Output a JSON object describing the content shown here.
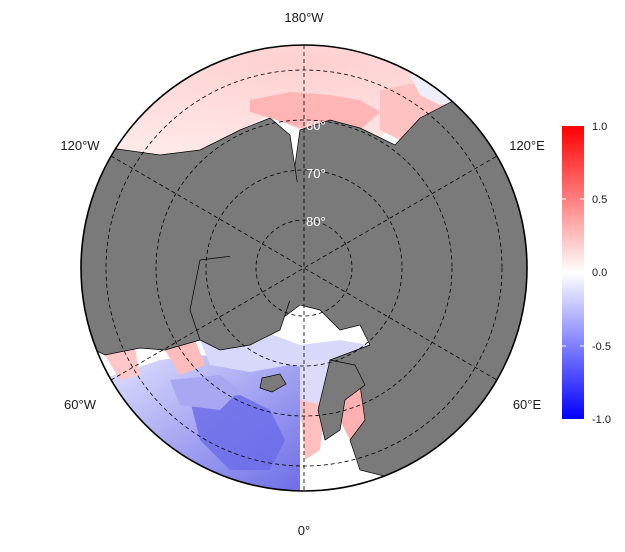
{
  "map": {
    "projection": "north-polar-stereographic",
    "longitude_labels": {
      "top": "180°W",
      "upper_left": "120°W",
      "upper_right": "120°E",
      "lower_left": "60°W",
      "lower_right": "60°E",
      "bottom": "0°"
    },
    "latitude_labels": [
      "60°",
      "70°",
      "80°"
    ],
    "colors": {
      "land": "#7a7a7a",
      "coastline": "#000000",
      "graticule": "#000000",
      "positive": "#ff0000",
      "neutral": "#ffffff",
      "negative": "#0000ff"
    }
  },
  "colorbar": {
    "ticks": [
      "1.0",
      "0.5",
      "0.0",
      "-0.5",
      "-1.0"
    ],
    "min": -1.0,
    "max": 1.0
  }
}
